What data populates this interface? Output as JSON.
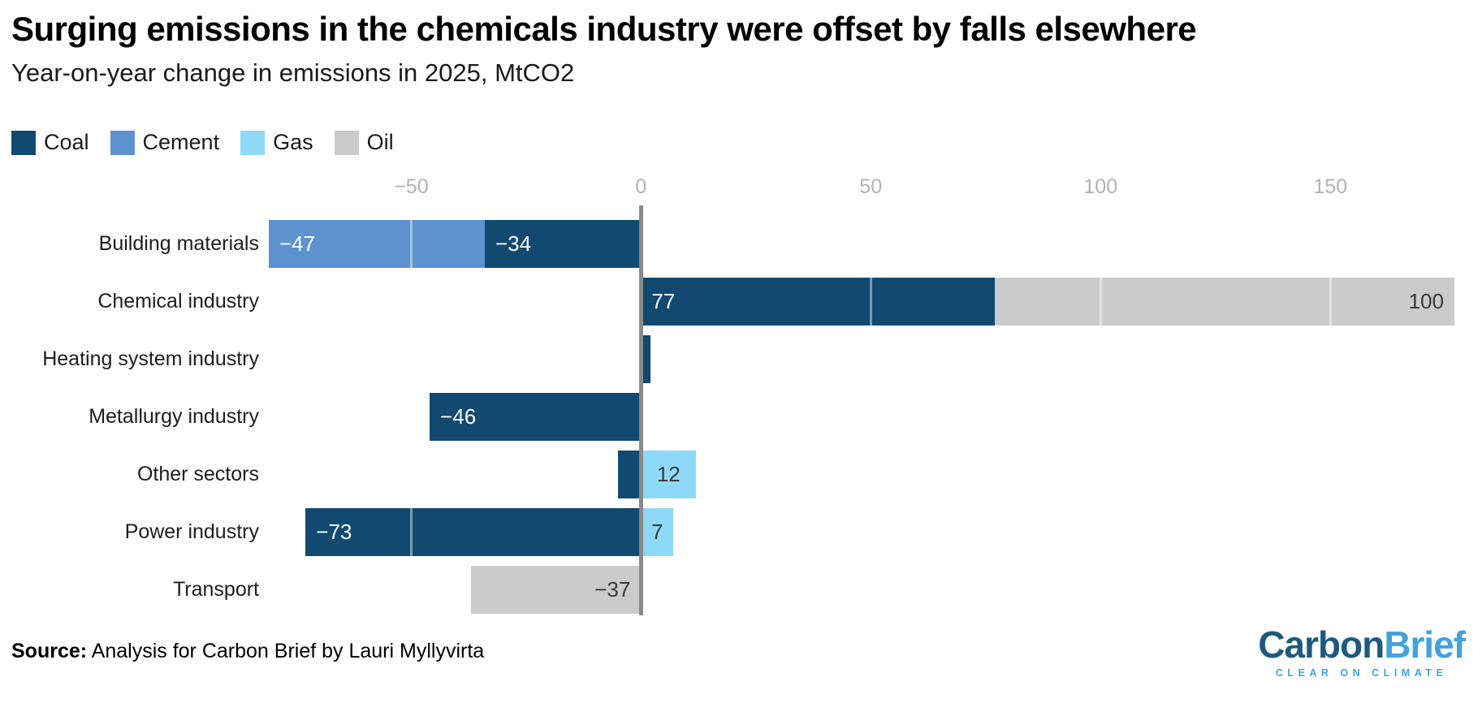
{
  "chart_data": {
    "type": "bar",
    "orientation": "horizontal",
    "stacked": true,
    "title": "Surging emissions in the chemicals industry were offset by falls elsewhere",
    "subtitle": "Year-on-year change in emissions in 2025, MtCO2",
    "unit": "MtCO2",
    "xlim": [
      -81,
      177
    ],
    "x_ticks": [
      {
        "value": -50,
        "label": "−50"
      },
      {
        "value": 0,
        "label": "0"
      },
      {
        "value": 50,
        "label": "50"
      },
      {
        "value": 100,
        "label": "100"
      },
      {
        "value": 150,
        "label": "150"
      }
    ],
    "grid": "vertical gridlines drawn over bars",
    "legend_position": "top-left",
    "zero_line_color": "#8a8a8a",
    "grid_line_color": "rgba(255,255,255,0.45)",
    "tick_label_color": "#b3b3b3",
    "series": [
      {
        "name": "Coal",
        "color": "#114970"
      },
      {
        "name": "Cement",
        "color": "#5c92ce"
      },
      {
        "name": "Gas",
        "color": "#8fd9f8"
      },
      {
        "name": "Oil",
        "color": "#cbcbcb"
      }
    ],
    "rows": [
      {
        "category": "Building materials",
        "segments": [
          {
            "series": "Coal",
            "value": -34,
            "label": "−34",
            "label_align": "start",
            "label_color": "#ffffff"
          },
          {
            "series": "Cement",
            "value": -47,
            "label": "−47",
            "label_align": "start",
            "label_color": "#ffffff"
          }
        ]
      },
      {
        "category": "Chemical industry",
        "segments": [
          {
            "series": "Coal",
            "value": 77,
            "label": "77",
            "label_align": "start",
            "label_color": "#ffffff"
          },
          {
            "series": "Oil",
            "value": 100,
            "label": "100",
            "label_align": "end",
            "label_color": "#3a3a3a"
          }
        ]
      },
      {
        "category": "Heating system industry",
        "segments": [
          {
            "series": "Coal",
            "value": 2
          }
        ]
      },
      {
        "category": "Metallurgy industry",
        "segments": [
          {
            "series": "Coal",
            "value": -46,
            "label": "−46",
            "label_align": "start",
            "label_color": "#ffffff"
          }
        ]
      },
      {
        "category": "Other sectors",
        "segments": [
          {
            "series": "Coal",
            "value": -5
          },
          {
            "series": "Gas",
            "value": 12,
            "label": "12",
            "label_align": "center",
            "label_color": "#3a3a3a"
          }
        ]
      },
      {
        "category": "Power industry",
        "segments": [
          {
            "series": "Coal",
            "value": -73,
            "label": "−73",
            "label_align": "start",
            "label_color": "#ffffff"
          },
          {
            "series": "Gas",
            "value": 7,
            "label": "7",
            "label_align": "center",
            "label_color": "#3a3a3a"
          }
        ]
      },
      {
        "category": "Transport",
        "segments": [
          {
            "series": "Oil",
            "value": -37,
            "label": "−37",
            "label_align": "end",
            "label_color": "#3a3a3a"
          }
        ]
      }
    ]
  },
  "footer": {
    "source_label": "Source:",
    "source_text": "Analysis for Carbon Brief by Lauri Myllyvirta",
    "logo": {
      "part1": "Carbon",
      "part2": "Brief",
      "tagline": "CLEAR ON CLIMATE",
      "part1_color": "#1f5a7d",
      "part2_color": "#45a1dc"
    }
  }
}
